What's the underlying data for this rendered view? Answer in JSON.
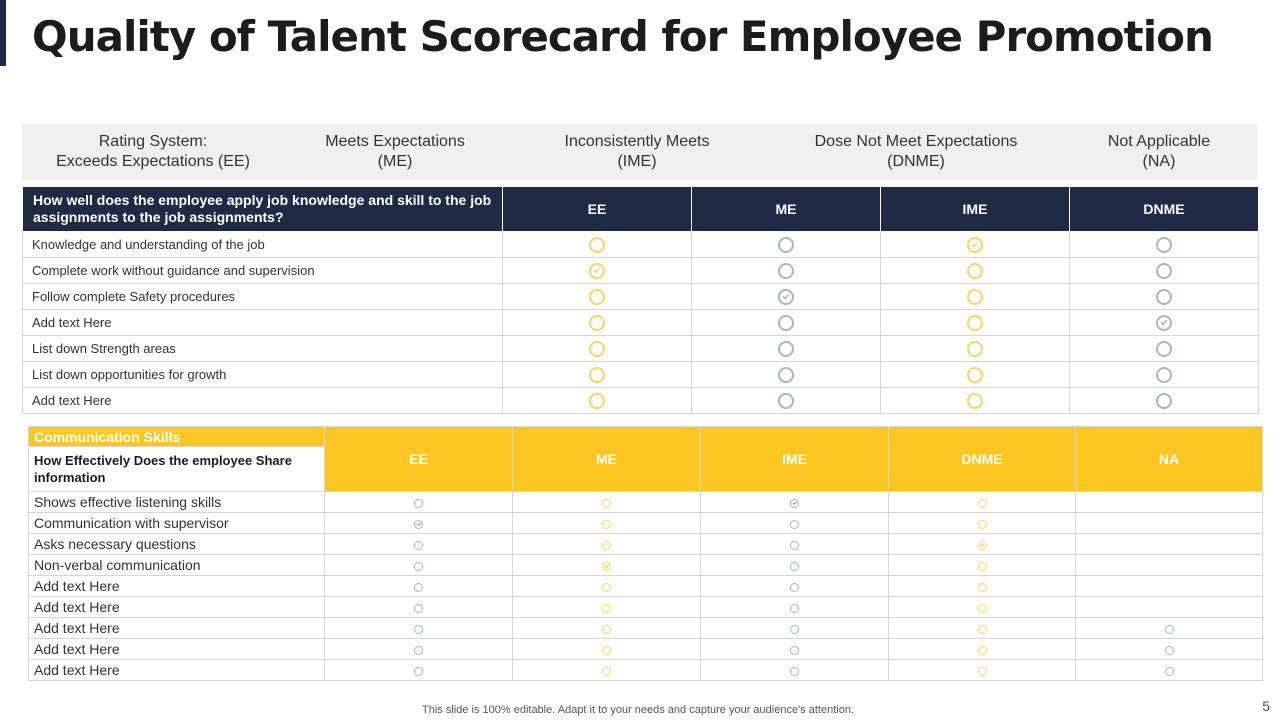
{
  "title": "Quality of Talent Scorecard for Employee Promotion",
  "colors": {
    "navy": "#1f2a44",
    "yellow": "#fcc623"
  },
  "legend": [
    {
      "line1": "Rating System:",
      "line2": "Exceeds Expectations (EE)"
    },
    {
      "line1": "Meets Expectations",
      "line2": "(ME)"
    },
    {
      "line1": "Inconsistently Meets",
      "line2": "(IME)"
    },
    {
      "line1": "Dose Not Meet Expectations",
      "line2": "(DNME)"
    },
    {
      "line1": "Not Applicable",
      "line2": "(NA)"
    }
  ],
  "table1": {
    "question": "How well does the employee apply job knowledge and skill to the job assignments to the job assignments?",
    "columns": [
      "EE",
      "ME",
      "IME",
      "DNME"
    ],
    "rows": [
      {
        "label": "Knowledge and understanding of the job",
        "checked": 2
      },
      {
        "label": "Complete work without guidance and supervision",
        "checked": 0
      },
      {
        "label": "Follow complete Safety procedures",
        "checked": 1
      },
      {
        "label": "Add text Here",
        "checked": 3
      },
      {
        "label": "List down Strength areas",
        "checked": -1
      },
      {
        "label": "List down opportunities for growth",
        "checked": -1
      },
      {
        "label": "Add text Here",
        "checked": -1
      }
    ]
  },
  "table2": {
    "section_title": "Communication Skills",
    "question": "How Effectively Does the employee Share information",
    "columns": [
      "EE",
      "ME",
      "IME",
      "DNME",
      "NA"
    ],
    "rows": [
      {
        "label": "Shows effective listening skills",
        "checked": 2
      },
      {
        "label": "Communication with supervisor",
        "checked": 0
      },
      {
        "label": "Asks necessary questions",
        "checked": 3
      },
      {
        "label": "Non-verbal  communication",
        "checked": 1
      },
      {
        "label": "Add text Here",
        "checked": -1
      },
      {
        "label": "Add text Here",
        "checked": -1
      },
      {
        "label": "Add text Here",
        "checked": -1
      },
      {
        "label": "Add text Here",
        "checked": -1
      },
      {
        "label": "Add text Here",
        "checked": -1
      }
    ]
  },
  "footer": "This slide is 100% editable. Adapt it to your needs and capture your audience's attention.",
  "page_number": "5"
}
